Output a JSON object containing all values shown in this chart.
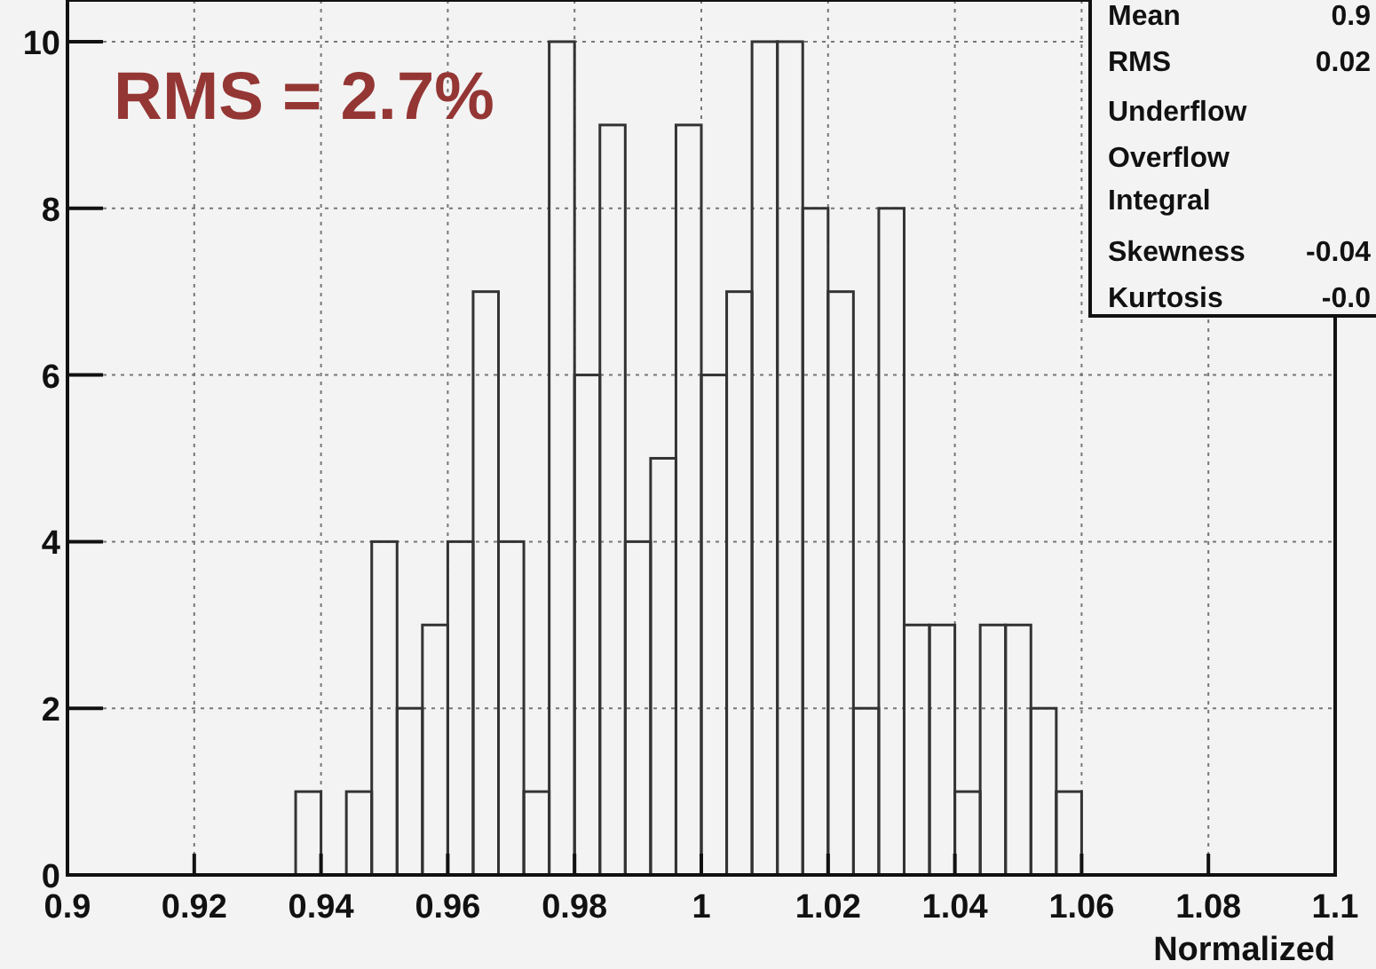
{
  "chart_data": {
    "type": "histogram",
    "xlabel": "Normalized",
    "bins": [
      0.936,
      0.94,
      0.944,
      0.948,
      0.952,
      0.956,
      0.96,
      0.964,
      0.968,
      0.972,
      0.976,
      0.98,
      0.984,
      0.988,
      0.992,
      0.996,
      1.0,
      1.004,
      1.008,
      1.012,
      1.016,
      1.02,
      1.024,
      1.028,
      1.032,
      1.036,
      1.04,
      1.044,
      1.048,
      1.052,
      1.056,
      1.06
    ],
    "values": [
      1,
      0,
      1,
      4,
      2,
      3,
      4,
      7,
      4,
      1,
      10,
      6,
      9,
      4,
      5,
      9,
      6,
      7,
      10,
      10,
      8,
      7,
      2,
      8,
      3,
      3,
      1,
      3,
      3,
      2,
      1
    ],
    "color": "#333333",
    "xlim": [
      0.9,
      1.1
    ],
    "xticks": [
      0.9,
      0.92,
      0.94,
      0.96,
      0.98,
      1,
      1.02,
      1.04,
      1.06,
      1.08,
      {
        "value": 1.1,
        "label": "1.1"
      }
    ],
    "ylim": [
      0,
      10.5
    ],
    "yticks": [
      0,
      2,
      4,
      6,
      8,
      10
    ],
    "grid": true,
    "annotations": [
      "RMS = 2.7%",
      "Mean",
      "0.9",
      "RMS",
      "0.02",
      "Underflow",
      "Overflow",
      "Integral",
      "Skewness",
      "-0.04",
      "Kurtosis",
      "-0.0"
    ]
  }
}
